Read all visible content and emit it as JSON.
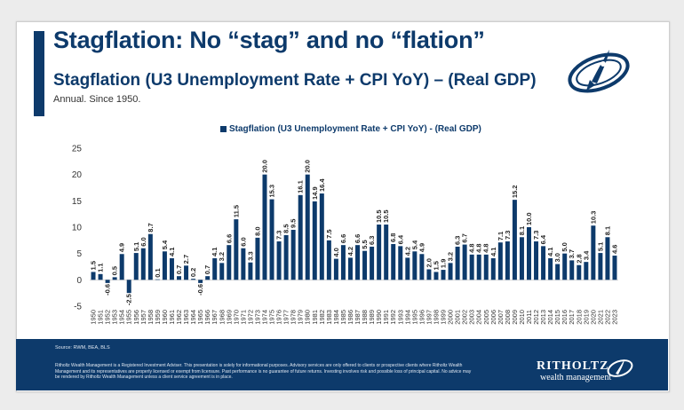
{
  "slide": {
    "headline": "Stagflation: No “stag” and no “flation”",
    "subtitle": "Stagflation (U3 Unemployment Rate + CPI YoY) – (Real GDP)",
    "note": "Annual. Since 1950.",
    "logo_icon": "rocket-emblem-icon"
  },
  "footer": {
    "source": "Source: RWM, BEA, BLS",
    "disclaimer": "Ritholtz Wealth Management is a Registered Investment Adviser. This presentation is solely for informational purposes. Advisory services are only offered to clients or prospective clients where Ritholtz Wealth Management and its representatives are properly licensed or exempt from licensure. Past performance is no guarantee of future returns. Investing involves risk and possible loss of principal capital. No advice may be rendered by Ritholtz Wealth Management unless a client service agreement is in place.",
    "brand_name": "RITHOLTZ",
    "brand_sub": "wealth management",
    "brand_icon": "rocket-emblem-icon"
  },
  "colors": {
    "brand": "#0d3a6b",
    "background": "#ffffff"
  },
  "chart_data": {
    "type": "bar",
    "legend": "Stagflation (U3 Unemployment Rate + CPI YoY) - (Real GDP)",
    "legend_position": "top-center",
    "ylim": [
      -5,
      25
    ],
    "yticks": [
      -5,
      0,
      5,
      10,
      15,
      20,
      25
    ],
    "grid": false,
    "categories": [
      "1950",
      "1951",
      "1952",
      "1953",
      "1954",
      "1955",
      "1956",
      "1957",
      "1958",
      "1959",
      "1960",
      "1961",
      "1962",
      "1963",
      "1964",
      "1965",
      "1966",
      "1967",
      "1968",
      "1969",
      "1970",
      "1971",
      "1972",
      "1973",
      "1974",
      "1975",
      "1976",
      "1977",
      "1978",
      "1979",
      "1980",
      "1981",
      "1982",
      "1983",
      "1984",
      "1985",
      "1986",
      "1987",
      "1988",
      "1989",
      "1990",
      "1991",
      "1992",
      "1993",
      "1994",
      "1995",
      "1996",
      "1997",
      "1998",
      "1999",
      "2000",
      "2001",
      "2002",
      "2003",
      "2004",
      "2005",
      "2006",
      "2007",
      "2008",
      "2009",
      "2010",
      "2011",
      "2012",
      "2013",
      "2014",
      "2015",
      "2016",
      "2017",
      "2018",
      "2019",
      "2020",
      "2021",
      "2022",
      "2023"
    ],
    "values": [
      1.5,
      1.1,
      -0.6,
      0.5,
      4.9,
      -2.5,
      5.1,
      6.0,
      8.7,
      0.1,
      5.4,
      4.1,
      0.7,
      2.7,
      0.2,
      -0.6,
      0.7,
      4.1,
      3.2,
      6.6,
      11.5,
      6.0,
      3.3,
      8.0,
      20.0,
      15.3,
      7.3,
      8.5,
      9.5,
      16.1,
      20.0,
      14.9,
      16.4,
      7.5,
      4.0,
      6.6,
      4.2,
      6.6,
      5.5,
      6.3,
      10.5,
      10.5,
      6.8,
      6.4,
      4.2,
      5.4,
      4.9,
      2.0,
      1.5,
      1.9,
      3.2,
      6.3,
      6.7,
      4.8,
      4.8,
      4.8,
      4.1,
      7.1,
      7.3,
      15.2,
      8.1,
      10.0,
      7.3,
      6.4,
      4.1,
      3.0,
      5.0,
      3.7,
      2.8,
      3.4,
      10.3,
      5.1,
      8.1,
      4.6
    ],
    "labels": [
      "1.5",
      "1.1",
      "-0.6",
      "0.5",
      "4.9",
      "-2.5",
      "5.1",
      "6.0",
      "8.7",
      "0.1",
      "5.4",
      "4.1",
      "0.7",
      "2.7",
      "0.2",
      "-0.6",
      "0.7",
      "4.1",
      "3.2",
      "6.6",
      "11.5",
      "6.0",
      "3.3",
      "8.0",
      "20.0",
      "15.3",
      "7.3",
      "8.5",
      "9.5",
      "16.1",
      "20.0",
      "14.9",
      "16.4",
      "7.5",
      "4.0",
      "6.6",
      "4.2",
      "6.6",
      "5.5",
      "6.3",
      "10.5",
      "10.5",
      "6.8",
      "6.4",
      "4.2",
      "5.4",
      "4.9",
      "2.0",
      "1.5",
      "1.9",
      "3.2",
      "6.3",
      "6.7",
      "4.8",
      "4.8",
      "4.8",
      "4.1",
      "7.1",
      "7.3",
      "15.2",
      "8.1",
      "10.0",
      "7.3",
      "6.4",
      "4.1",
      "3.0",
      "5.0",
      "3.7",
      "2.8",
      "3.4",
      "10.3",
      "5.1",
      "8.1",
      "4.6"
    ]
  }
}
